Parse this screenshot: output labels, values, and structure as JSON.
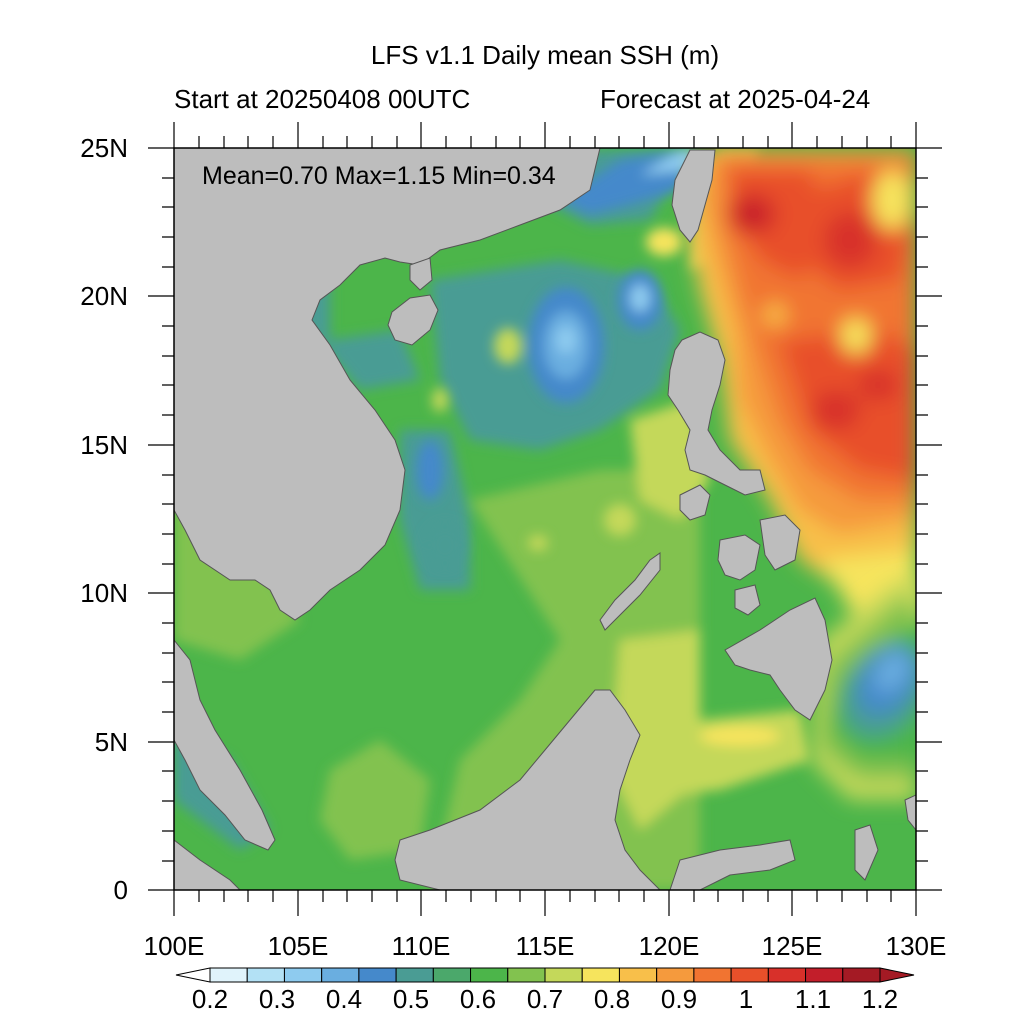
{
  "title": "LFS v1.1 Daily mean SSH (m)",
  "subtitle_left": "Start at 20250408 00UTC",
  "subtitle_right": "Forecast at 2025-04-24",
  "stats": "Mean=0.70  Max=1.15  Min=0.34",
  "map": {
    "lon_range": [
      100,
      130
    ],
    "lat_range": [
      0,
      25
    ],
    "lon_ticks": [
      "100E",
      "105E",
      "110E",
      "115E",
      "120E",
      "125E",
      "130E"
    ],
    "lat_ticks": [
      "0",
      "5N",
      "10N",
      "15N",
      "20N",
      "25N"
    ],
    "land_color": "#bdbdbd"
  },
  "colorbar": {
    "labels": [
      "0.2",
      "0.3",
      "0.4",
      "0.5",
      "0.6",
      "0.7",
      "0.8",
      "0.9",
      "1",
      "1.1",
      "1.2"
    ],
    "colors": [
      "#ffffff",
      "#e0f3fb",
      "#b3e1f5",
      "#8ecbef",
      "#6aaee0",
      "#4589cb",
      "#4a9c94",
      "#4ba86b",
      "#4cb54a",
      "#82c24f",
      "#c4d85a",
      "#f6e45d",
      "#f8bf4a",
      "#f59a3d",
      "#f17431",
      "#e8502a",
      "#d8302a",
      "#c21e2a",
      "#a41a24",
      "#a41a24"
    ]
  }
}
